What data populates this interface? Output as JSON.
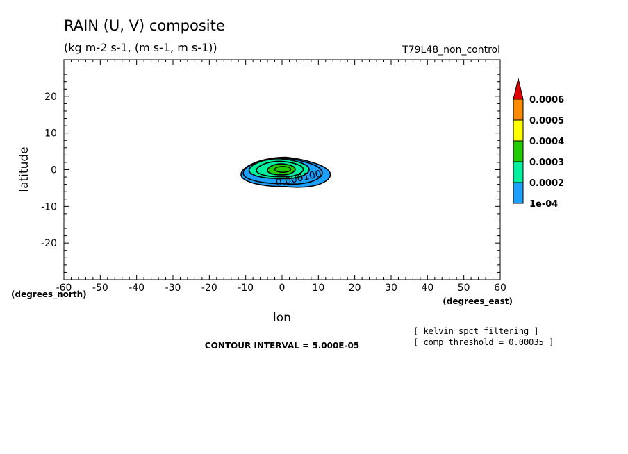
{
  "chart_data": {
    "type": "contour",
    "title": "RAIN (U, V) composite",
    "subtitle": "(kg m-2 s-1, (m s-1, m s-1))",
    "run_label": "T79L48_non_control",
    "xlabel": "lon",
    "xunit": "(degrees_east)",
    "ylabel": "latitude",
    "yunit": "(degrees_north)",
    "xlim": [
      -60,
      60
    ],
    "ylim": [
      -30,
      30
    ],
    "xticks": [
      "-60",
      "-50",
      "-40",
      "-30",
      "-20",
      "-10",
      "0",
      "10",
      "20",
      "30",
      "40",
      "50",
      "60"
    ],
    "yticks": [
      "20",
      "10",
      "0",
      "-10",
      "-20"
    ],
    "contour_interval_text": "CONTOUR INTERVAL = 5.000E-05",
    "notes": [
      "[ kelvin spct filtering ]",
      "[ comp threshold = 0.00035 ]"
    ],
    "contour_label": "0.000100",
    "colorbar": {
      "labels": [
        "0.0006",
        "0.0005",
        "0.0004",
        "0.0003",
        "0.0002",
        "1e-04"
      ],
      "colors": [
        "#ff8c00",
        "#ffff00",
        "#22cc00",
        "#00f0a0",
        "#1ea0ff"
      ],
      "extend_color": "#e00000"
    },
    "contours": [
      {
        "level": 0.0001,
        "color": "#1ea0ff",
        "center": [
          1,
          -0.6
        ],
        "half_width": [
          12.2,
          4.0
        ]
      },
      {
        "level": 0.00015,
        "color": "#1ea0ff",
        "center": [
          0.2,
          -0.3
        ],
        "half_width": [
          10.8,
          3.5
        ]
      },
      {
        "level": 0.0002,
        "color": "#00f0a0",
        "center": [
          -0.8,
          0.3
        ],
        "half_width": [
          8.2,
          2.7
        ]
      },
      {
        "level": 0.00025,
        "color": "#00f0a0",
        "center": [
          -0.6,
          0.2
        ],
        "half_width": [
          6.4,
          2.1
        ]
      },
      {
        "level": 0.0003,
        "color": "#22cc00",
        "center": [
          -0.2,
          0.1
        ],
        "half_width": [
          3.8,
          1.5
        ]
      }
    ]
  }
}
